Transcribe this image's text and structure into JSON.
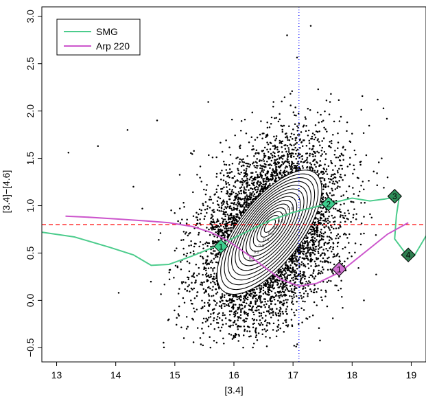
{
  "chart_data": {
    "type": "scatter",
    "xlabel": "[3.4]",
    "ylabel": "[3.4]−[4.6]",
    "xlim": [
      12.75,
      19.25
    ],
    "ylim": [
      -0.65,
      3.1
    ],
    "x_ticks": [
      "13",
      "14",
      "15",
      "16",
      "17",
      "18",
      "19"
    ],
    "y_ticks": [
      "−0.5",
      "0.0",
      "0.5",
      "1.0",
      "1.5",
      "2.0",
      "2.5",
      "3.0"
    ],
    "grid": false,
    "legend": {
      "position": "top-left",
      "entries": [
        "SMG",
        "Arp 220"
      ]
    },
    "scatter_cloud": {
      "center": [
        16.6,
        0.72
      ],
      "x_range": [
        14.0,
        18.9
      ],
      "y_range": [
        -0.5,
        2.9
      ],
      "color": "#000000"
    },
    "contours": {
      "center": [
        16.6,
        0.72
      ],
      "levels": [
        "0.1",
        "0.2",
        "0.3",
        "0.4",
        "0.5",
        "0.6",
        "0.7",
        "0.8",
        "0.9"
      ]
    },
    "reference_lines": [
      {
        "orientation": "horizontal",
        "value": 0.8,
        "color": "#ff0000",
        "style": "dashed"
      },
      {
        "orientation": "vertical",
        "value": 17.1,
        "color": "#0000ff",
        "style": "dotted"
      }
    ],
    "series": [
      {
        "name": "SMG",
        "color": "#4ccc8c",
        "x": [
          12.75,
          13.3,
          13.9,
          14.3,
          14.6,
          14.9,
          15.3,
          15.8,
          16.2,
          16.6,
          17.0,
          17.4,
          17.8,
          18.0,
          18.3,
          18.55,
          18.8,
          18.75,
          18.72,
          18.9,
          19.05,
          19.25
        ],
        "y": [
          0.72,
          0.67,
          0.56,
          0.48,
          0.37,
          0.38,
          0.47,
          0.6,
          0.72,
          0.84,
          0.93,
          0.99,
          1.05,
          1.08,
          1.05,
          1.07,
          1.1,
          0.9,
          0.65,
          0.5,
          0.47,
          0.68
        ]
      },
      {
        "name": "Arp 220",
        "color": "#cc55cc",
        "x": [
          13.15,
          13.5,
          14.0,
          14.5,
          14.9,
          15.3,
          15.6,
          15.9,
          16.2,
          16.5,
          16.8,
          17.1,
          17.4,
          17.8,
          18.2,
          18.6,
          18.95
        ],
        "y": [
          0.89,
          0.88,
          0.86,
          0.84,
          0.82,
          0.78,
          0.72,
          0.63,
          0.5,
          0.36,
          0.22,
          0.15,
          0.18,
          0.3,
          0.5,
          0.7,
          0.82
        ]
      }
    ],
    "markers": [
      {
        "label": "1",
        "x": 15.78,
        "y": 0.57,
        "color": "#3ecf8e"
      },
      {
        "label": "2",
        "x": 17.6,
        "y": 1.02,
        "color": "#3ecf8e"
      },
      {
        "label": "3",
        "x": 18.72,
        "y": 1.1,
        "color": "#2e8b57"
      },
      {
        "label": "4",
        "x": 18.95,
        "y": 0.48,
        "color": "#2e7d4f"
      },
      {
        "label": "1",
        "x": 17.78,
        "y": 0.33,
        "color": "#d070d0"
      }
    ]
  }
}
